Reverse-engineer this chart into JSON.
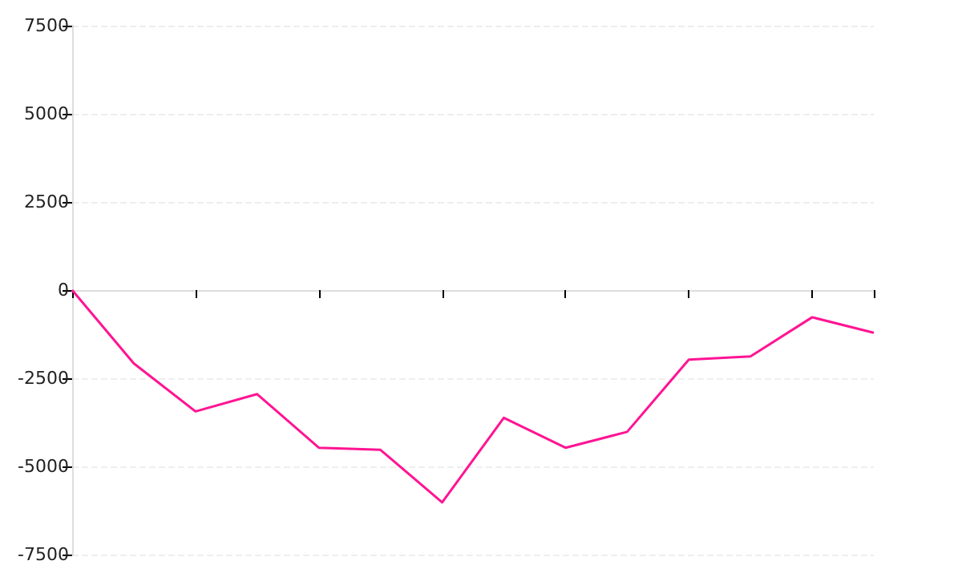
{
  "chart_data": {
    "type": "line",
    "categories": [
      null,
      null,
      null,
      null,
      null,
      null,
      null,
      null,
      null,
      null,
      null,
      null,
      null,
      null
    ],
    "series": [
      {
        "color": "#ff1493",
        "values": [
          0,
          -2080,
          -3440,
          -2950,
          -4470,
          -4530,
          -6020,
          -3620,
          -4470,
          -4020,
          -1970,
          -1880,
          -770,
          -1210
        ]
      }
    ],
    "ylim": [
      -7500,
      7500
    ],
    "yticks": [
      -7500,
      -5000,
      -2500,
      0,
      2500,
      5000,
      7500
    ],
    "tick_labels": "y",
    "grid": "y",
    "marker": "none",
    "line_style": "solid"
  }
}
